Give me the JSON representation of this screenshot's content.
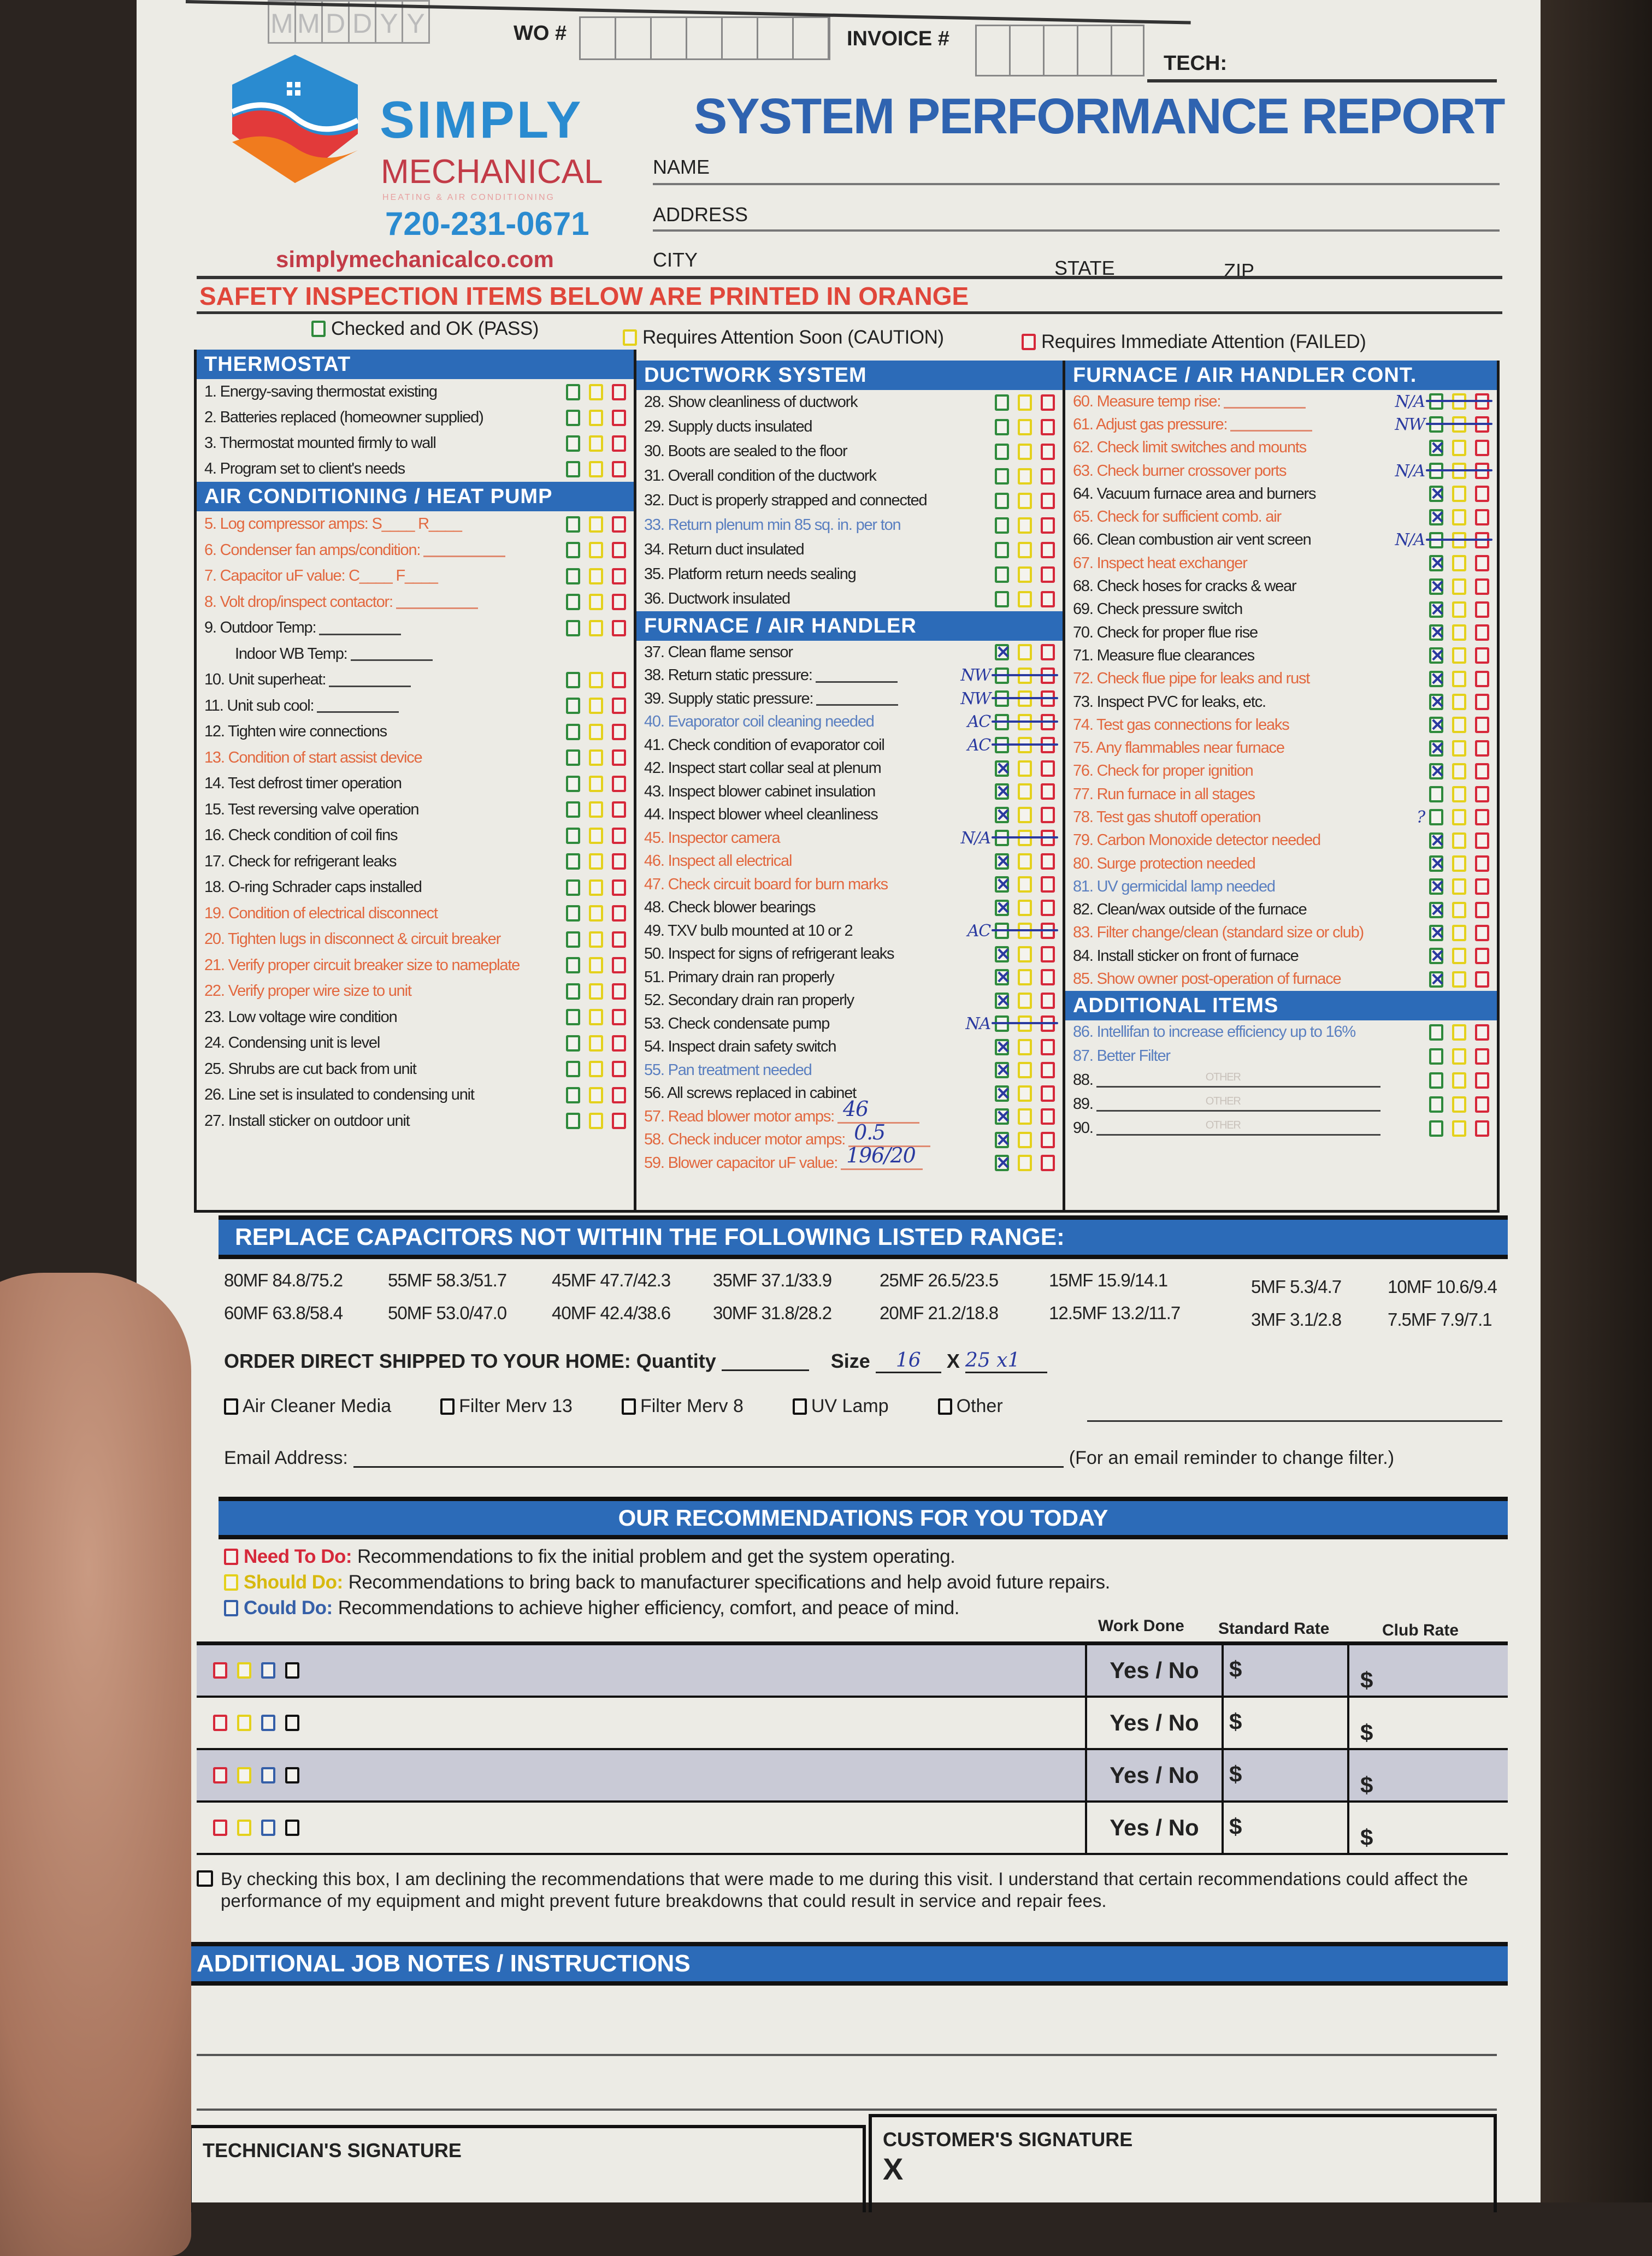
{
  "colors": {
    "brand_blue": "#2c6bb8",
    "pass": "#2f8a3c",
    "caution": "#e4d11c",
    "failed": "#d6283a",
    "safety_orange": "#e2683f",
    "ink": "#2a3aa0"
  },
  "header": {
    "date_boxes": [
      "M",
      "M",
      "D",
      "D",
      "Y",
      "Y"
    ],
    "wo_label": "WO #",
    "invoice_label": "INVOICE #",
    "tech_label": "TECH:"
  },
  "logo": {
    "line1": "SIMPLY",
    "line2": "MECHANICAL",
    "tagline": "HEATING & AIR CONDITIONING",
    "phone": "720-231-0671",
    "website": "simplymechanicalco.com"
  },
  "title": "SYSTEM PERFORMANCE REPORT",
  "customer": {
    "name_label": "NAME",
    "address_label": "ADDRESS",
    "city_label": "CITY",
    "state_label": "STATE",
    "zip_label": "ZIP"
  },
  "safety_notice": "SAFETY INSPECTION ITEMS BELOW ARE PRINTED IN ORANGE",
  "legend": {
    "pass": "Checked and OK (PASS)",
    "caution": "Requires Attention Soon (CAUTION)",
    "failed": "Requires Immediate Attention (FAILED)"
  },
  "columns": [
    [
      {
        "title": "THERMOSTAT",
        "rh": 47,
        "items": [
          {
            "t": "1. Energy-saving thermostat existing",
            "c": "k"
          },
          {
            "t": "2. Batteries replaced (homeowner supplied)",
            "c": "k"
          },
          {
            "t": "3. Thermostat mounted firmly to wall",
            "c": "k"
          },
          {
            "t": "4. Program set to client's needs",
            "c": "k"
          }
        ]
      },
      {
        "title": "AIR CONDITIONING / HEAT PUMP",
        "rh": 47.5,
        "items": [
          {
            "t": "5. Log compressor amps: S____ R____",
            "c": "o"
          },
          {
            "t": "6. Condenser fan amps/condition:",
            "c": "o",
            "blank": true
          },
          {
            "t": "7. Capacitor uF value: C____ F____",
            "c": "o"
          },
          {
            "t": "8. Volt drop/inspect contactor:",
            "c": "o",
            "blank": true
          },
          {
            "t": "9. Outdoor Temp:",
            "c": "k",
            "blank": true
          },
          {
            "t": "Indoor WB Temp:",
            "c": "k",
            "blank": true,
            "noboxes": true,
            "indent": true
          },
          {
            "t": "10. Unit superheat:",
            "c": "k",
            "blank": true
          },
          {
            "t": "11. Unit sub cool:",
            "c": "k",
            "blank": true
          },
          {
            "t": "12. Tighten wire connections",
            "c": "k"
          },
          {
            "t": "13. Condition of start assist device",
            "c": "o"
          },
          {
            "t": "14. Test defrost timer operation",
            "c": "k"
          },
          {
            "t": "15. Test reversing valve operation",
            "c": "k"
          },
          {
            "t": "16. Check condition of coil fins",
            "c": "k"
          },
          {
            "t": "17. Check for refrigerant leaks",
            "c": "k"
          },
          {
            "t": "18. O-ring Schrader caps installed",
            "c": "k"
          },
          {
            "t": "19. Condition of electrical disconnect",
            "c": "o"
          },
          {
            "t": "20. Tighten lugs in disconnect & circuit breaker",
            "c": "o"
          },
          {
            "t": "21. Verify proper circuit breaker size to nameplate",
            "c": "o"
          },
          {
            "t": "22. Verify proper wire size to unit",
            "c": "o"
          },
          {
            "t": "23. Low voltage wire condition",
            "c": "k"
          },
          {
            "t": "24. Condensing unit is level",
            "c": "k"
          },
          {
            "t": "25. Shrubs are cut back from unit",
            "c": "k"
          },
          {
            "t": "26. Line set is insulated to condensing unit",
            "c": "k"
          },
          {
            "t": "27. Install sticker on outdoor unit",
            "c": "k"
          }
        ]
      }
    ],
    [
      {
        "title": "DUCTWORK SYSTEM",
        "rh": 45,
        "items": [
          {
            "t": "28. Show cleanliness of ductwork",
            "c": "k"
          },
          {
            "t": "29. Supply ducts insulated",
            "c": "k"
          },
          {
            "t": "30. Boots are sealed to the floor",
            "c": "k"
          },
          {
            "t": "31. Overall condition of the ductwork",
            "c": "k"
          },
          {
            "t": "32. Duct is properly strapped and connected",
            "c": "k"
          },
          {
            "t": "33. Return plenum min 85 sq. in. per ton",
            "c": "b"
          },
          {
            "t": "34. Return duct insulated",
            "c": "k"
          },
          {
            "t": "35. Platform return needs sealing",
            "c": "k"
          },
          {
            "t": "36. Ductwork insulated",
            "c": "k"
          }
        ]
      },
      {
        "title": "FURNACE / AIR HANDLER",
        "rh": 42.5,
        "items": [
          {
            "t": "37. Clean flame sensor",
            "c": "k",
            "m": "checked"
          },
          {
            "t": "38. Return static pressure:",
            "c": "k",
            "blank": true,
            "m": "struck",
            "note": "NW"
          },
          {
            "t": "39. Supply static pressure:",
            "c": "k",
            "blank": true,
            "m": "struck",
            "note": "NW"
          },
          {
            "t": "40. Evaporator coil cleaning needed",
            "c": "b",
            "m": "struck",
            "note": "AC"
          },
          {
            "t": "41. Check condition of evaporator coil",
            "c": "k",
            "m": "struck",
            "note": "AC"
          },
          {
            "t": "42. Inspect start collar seal at plenum",
            "c": "k",
            "m": "checked"
          },
          {
            "t": "43. Inspect blower cabinet insulation",
            "c": "k",
            "m": "checked"
          },
          {
            "t": "44. Inspect blower wheel cleanliness",
            "c": "k",
            "m": "checked"
          },
          {
            "t": "45. Inspector camera",
            "c": "o",
            "m": "struck",
            "note": "N/A"
          },
          {
            "t": "46. Inspect all electrical",
            "c": "o",
            "m": "checked"
          },
          {
            "t": "47. Check circuit board for burn marks",
            "c": "o",
            "m": "checked"
          },
          {
            "t": "48. Check blower bearings",
            "c": "k",
            "m": "checked"
          },
          {
            "t": "49. TXV bulb mounted at 10 or 2",
            "c": "k",
            "m": "struck",
            "note": "AC"
          },
          {
            "t": "50. Inspect for signs of refrigerant leaks",
            "c": "k",
            "m": "checked"
          },
          {
            "t": "51. Primary drain ran properly",
            "c": "k",
            "m": "checked"
          },
          {
            "t": "52. Secondary drain ran properly",
            "c": "k",
            "m": "checked"
          },
          {
            "t": "53. Check condensate pump",
            "c": "k",
            "m": "struck",
            "note": "NA"
          },
          {
            "t": "54. Inspect drain safety switch",
            "c": "k",
            "m": "checked"
          },
          {
            "t": "55. Pan treatment needed",
            "c": "b",
            "m": "checked"
          },
          {
            "t": "56. All screws replaced in cabinet",
            "c": "k",
            "m": "checked"
          },
          {
            "t": "57. Read blower motor amps:",
            "c": "o",
            "blank": true,
            "m": "checked",
            "val": "46"
          },
          {
            "t": "58. Check inducer motor amps:",
            "c": "o",
            "blank": true,
            "m": "checked",
            "val": "0.5"
          },
          {
            "t": "59. Blower capacitor uF value:",
            "c": "o",
            "blank": true,
            "m": "checked",
            "val": "196/20"
          }
        ]
      }
    ],
    [
      {
        "title": "FURNACE / AIR HANDLER CONT.",
        "rh": 42.3,
        "items": [
          {
            "t": "60. Measure temp rise:",
            "c": "o",
            "blank": true,
            "m": "struck",
            "note": "N/A"
          },
          {
            "t": "61. Adjust gas pressure:",
            "c": "o",
            "blank": true,
            "m": "struck",
            "note": "NW"
          },
          {
            "t": "62. Check limit switches and mounts",
            "c": "o",
            "m": "checked"
          },
          {
            "t": "63. Check burner crossover ports",
            "c": "o",
            "m": "struck",
            "note": "N/A"
          },
          {
            "t": "64. Vacuum furnace area and burners",
            "c": "k",
            "m": "checked"
          },
          {
            "t": "65. Check for sufficient comb. air",
            "c": "o",
            "m": "checked"
          },
          {
            "t": "66. Clean combustion air vent screen",
            "c": "k",
            "m": "struck",
            "note": "N/A"
          },
          {
            "t": "67. Inspect heat exchanger",
            "c": "o",
            "m": "checked"
          },
          {
            "t": "68. Check hoses for cracks & wear",
            "c": "k",
            "m": "checked"
          },
          {
            "t": "69. Check pressure switch",
            "c": "k",
            "m": "checked"
          },
          {
            "t": "70. Check for proper flue rise",
            "c": "k",
            "m": "checked"
          },
          {
            "t": "71. Measure flue clearances",
            "c": "k",
            "m": "checked"
          },
          {
            "t": "72. Check flue pipe for leaks and rust",
            "c": "o",
            "m": "checked"
          },
          {
            "t": "73. Inspect PVC for leaks, etc.",
            "c": "k",
            "m": "checked"
          },
          {
            "t": "74. Test gas connections for leaks",
            "c": "o",
            "m": "checked"
          },
          {
            "t": "75. Any flammables near furnace",
            "c": "o",
            "m": "checked"
          },
          {
            "t": "76. Check for proper ignition",
            "c": "o",
            "m": "checked"
          },
          {
            "t": "77. Run furnace in all stages",
            "c": "o"
          },
          {
            "t": "78. Test gas shutoff operation",
            "c": "o",
            "note": "?"
          },
          {
            "t": "79. Carbon Monoxide detector needed",
            "c": "o",
            "m": "checked"
          },
          {
            "t": "80. Surge protection needed",
            "c": "o",
            "m": "checked"
          },
          {
            "t": "81. UV germicidal lamp needed",
            "c": "b",
            "m": "checked"
          },
          {
            "t": "82. Clean/wax outside of the furnace",
            "c": "k",
            "m": "checked"
          },
          {
            "t": "83. Filter change/clean (standard size or club)",
            "c": "o",
            "m": "checked"
          },
          {
            "t": "84. Install sticker on front of furnace",
            "c": "k",
            "m": "checked"
          },
          {
            "t": "85. Show owner post-operation of furnace",
            "c": "o",
            "m": "checked"
          }
        ]
      },
      {
        "title": "ADDITIONAL ITEMS",
        "rh": 44,
        "items": [
          {
            "t": "86. Intellifan to increase efficiency up to 16%",
            "c": "b"
          },
          {
            "t": "87. Better Filter",
            "c": "b"
          },
          {
            "t": "88.",
            "c": "k",
            "other": "OTHER"
          },
          {
            "t": "89.",
            "c": "k",
            "other": "OTHER"
          },
          {
            "t": "90.",
            "c": "k",
            "other": "OTHER"
          }
        ]
      }
    ]
  ],
  "capacitors": {
    "title": "REPLACE CAPACITORS NOT WITHIN THE FOLLOWING LISTED RANGE:",
    "row1": [
      "80MF 84.8/75.2",
      "55MF 58.3/51.7",
      "45MF 47.7/42.3",
      "35MF 37.1/33.9",
      "25MF 26.5/23.5",
      "15MF 15.9/14.1",
      "5MF 5.3/4.7",
      "10MF 10.6/9.4"
    ],
    "row2": [
      "60MF 63.8/58.4",
      "50MF 53.0/47.0",
      "40MF 42.4/38.6",
      "30MF 31.8/28.2",
      "20MF 21.2/18.8",
      "12.5MF 13.2/11.7",
      "3MF 3.1/2.8",
      "7.5MF 7.9/7.1"
    ]
  },
  "order": {
    "label": "ORDER DIRECT SHIPPED TO YOUR HOME:",
    "quantity_label": "Quantity",
    "quantity_value": "",
    "size_label": "Size",
    "size_w": "16",
    "x": "X",
    "size_h": "25 x1",
    "options": [
      "Air Cleaner Media",
      "Filter Merv 13",
      "Filter Merv 8",
      "UV Lamp",
      "Other"
    ],
    "email_label": "Email Address:",
    "email_note": "(For an email reminder to change filter.)"
  },
  "recommendations": {
    "title": "OUR RECOMMENDATIONS FOR YOU TODAY",
    "need_label": "Need To Do:",
    "need_text": "Recommendations to fix the initial problem and get the system operating.",
    "should_label": "Should Do:",
    "should_text": "Recommendations to bring back to manufacturer specifications and help avoid future repairs.",
    "could_label": "Could Do:",
    "could_text": "Recommendations to achieve higher efficiency, comfort, and peace of mind.",
    "headers": {
      "work": "Work Done",
      "standard": "Standard Rate",
      "club": "Club Rate"
    },
    "rows": [
      {
        "work": "Yes / No",
        "std": "$",
        "club": "$"
      },
      {
        "work": "Yes / No",
        "std": "$",
        "club": "$"
      },
      {
        "work": "Yes / No",
        "std": "$",
        "club": "$"
      },
      {
        "work": "Yes / No",
        "std": "$",
        "club": "$"
      }
    ]
  },
  "decline_text": "By checking this box, I am declining the recommendations that were made to me during this visit. I understand that certain recommendations could affect the performance of my equipment and might prevent future breakdowns that could result in service and repair fees.",
  "notes_title": "ADDITIONAL JOB NOTES / INSTRUCTIONS",
  "signatures": {
    "tech": "TECHNICIAN'S SIGNATURE",
    "customer": "CUSTOMER'S SIGNATURE",
    "x": "X"
  }
}
